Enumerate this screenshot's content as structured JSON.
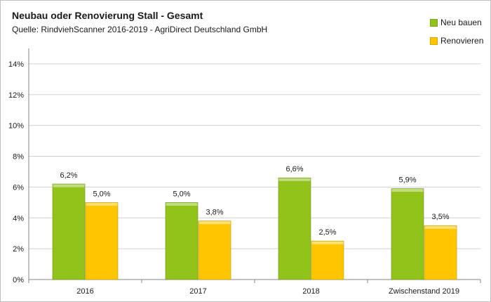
{
  "chart_data": {
    "type": "bar",
    "title": "Neubau oder Renovierung Stall - Gesamt",
    "subtitle": "Quelle: RindviehScanner 2016-2019 - AgriDirect Deutschland GmbH",
    "categories": [
      "2016",
      "2017",
      "2018",
      "Zwischenstand 2019"
    ],
    "series": [
      {
        "name": "Neu bauen",
        "color": "#92c31a",
        "values": [
          6.2,
          5.0,
          6.6,
          5.9
        ],
        "labels": [
          "6,2%",
          "5,0%",
          "6,6%",
          "5,9%"
        ]
      },
      {
        "name": "Renovieren",
        "color": "#ffc600",
        "values": [
          5.0,
          3.8,
          2.5,
          3.5
        ],
        "labels": [
          "5,0%",
          "3,8%",
          "2,5%",
          "3,5%"
        ]
      }
    ],
    "ylim": [
      0,
      15
    ],
    "yticks": [
      0,
      2,
      4,
      6,
      8,
      10,
      12,
      14
    ],
    "ytick_labels": [
      "0%",
      "2%",
      "4%",
      "6%",
      "8%",
      "10%",
      "12%",
      "14%"
    ],
    "grid": true,
    "legend_position": "top-right"
  }
}
